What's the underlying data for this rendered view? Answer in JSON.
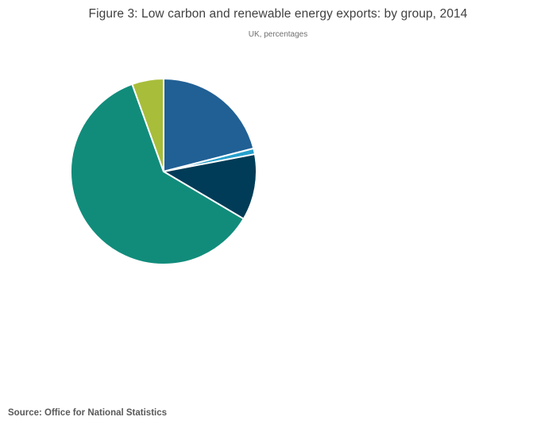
{
  "chart_data": {
    "type": "pie",
    "title": "Figure 3: Low carbon and renewable energy exports: by group, 2014",
    "subtitle": "UK, percentages",
    "source": "Source: Office for National Statistics",
    "legend_position": "none",
    "data_labels_visible": false,
    "start_angle_deg": 0,
    "direction": "clockwise",
    "segments": [
      {
        "name": "dark-blue",
        "value_percent": 21.0,
        "color": "#206095"
      },
      {
        "name": "light-blue",
        "value_percent": 1.0,
        "color": "#27A0CC"
      },
      {
        "name": "dark-navy",
        "value_percent": 11.5,
        "color": "#003C57"
      },
      {
        "name": "teal",
        "value_percent": 61.0,
        "color": "#118C7B"
      },
      {
        "name": "olive-green",
        "value_percent": 5.5,
        "color": "#A8BD3A"
      }
    ],
    "slice_border_color": "#ffffff",
    "slice_border_width": 2
  },
  "colors": {
    "background": "#ffffff",
    "title_text": "#404041",
    "subtitle_text": "#707070",
    "source_text": "#595959"
  }
}
